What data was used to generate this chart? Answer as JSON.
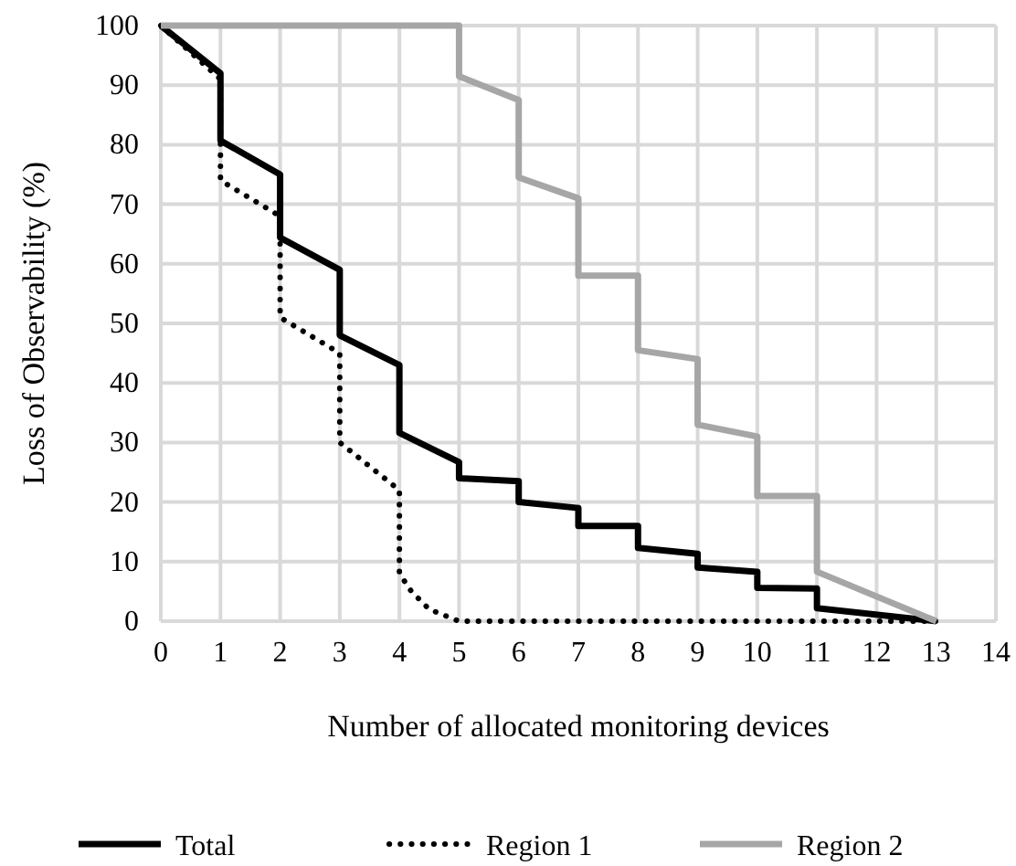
{
  "chart_data": {
    "type": "line",
    "xlabel": "Number of allocated monitoring devices",
    "ylabel": "Loss of Observability (%)",
    "xlim": [
      0,
      14
    ],
    "xticks": [
      0,
      1,
      2,
      3,
      4,
      5,
      6,
      7,
      8,
      9,
      10,
      11,
      12,
      13,
      14
    ],
    "ylim": [
      0,
      100
    ],
    "yticks": [
      0,
      10,
      20,
      30,
      40,
      50,
      60,
      70,
      80,
      90,
      100
    ],
    "grid": true,
    "legend": "bottom",
    "series": [
      {
        "name": "Total",
        "color": "#000000",
        "line_style": "solid",
        "x": [
          0,
          1,
          1,
          2,
          2,
          3,
          3,
          4,
          4,
          5,
          5,
          6,
          6,
          7,
          7,
          8,
          8,
          9,
          9,
          10,
          10,
          11,
          11,
          13
        ],
        "values": [
          100,
          92,
          80.7,
          75,
          64.4,
          59,
          48,
          43,
          31.6,
          26.7,
          24,
          23.5,
          20,
          19,
          16,
          16,
          12.3,
          11.3,
          9,
          8.3,
          5.6,
          5.5,
          2.2,
          0
        ]
      },
      {
        "name": "Region 1",
        "color": "#000000",
        "line_style": "dotted",
        "x": [
          0,
          1,
          1,
          2,
          2,
          3,
          3,
          4,
          4,
          4.2,
          4.5,
          5,
          13
        ],
        "values": [
          100,
          91,
          74,
          68,
          51,
          45,
          30,
          22,
          8,
          5,
          2,
          0,
          0
        ]
      },
      {
        "name": "Region 2",
        "color": "#a6a6a6",
        "line_style": "solid",
        "x": [
          0,
          5,
          5,
          6,
          6,
          7,
          7,
          8,
          8,
          9,
          9,
          10,
          10,
          11,
          11,
          13
        ],
        "values": [
          100,
          100,
          91.5,
          87.5,
          74.5,
          71,
          58,
          58,
          45.5,
          44,
          33,
          31,
          21,
          21,
          8.3,
          0
        ]
      }
    ]
  }
}
